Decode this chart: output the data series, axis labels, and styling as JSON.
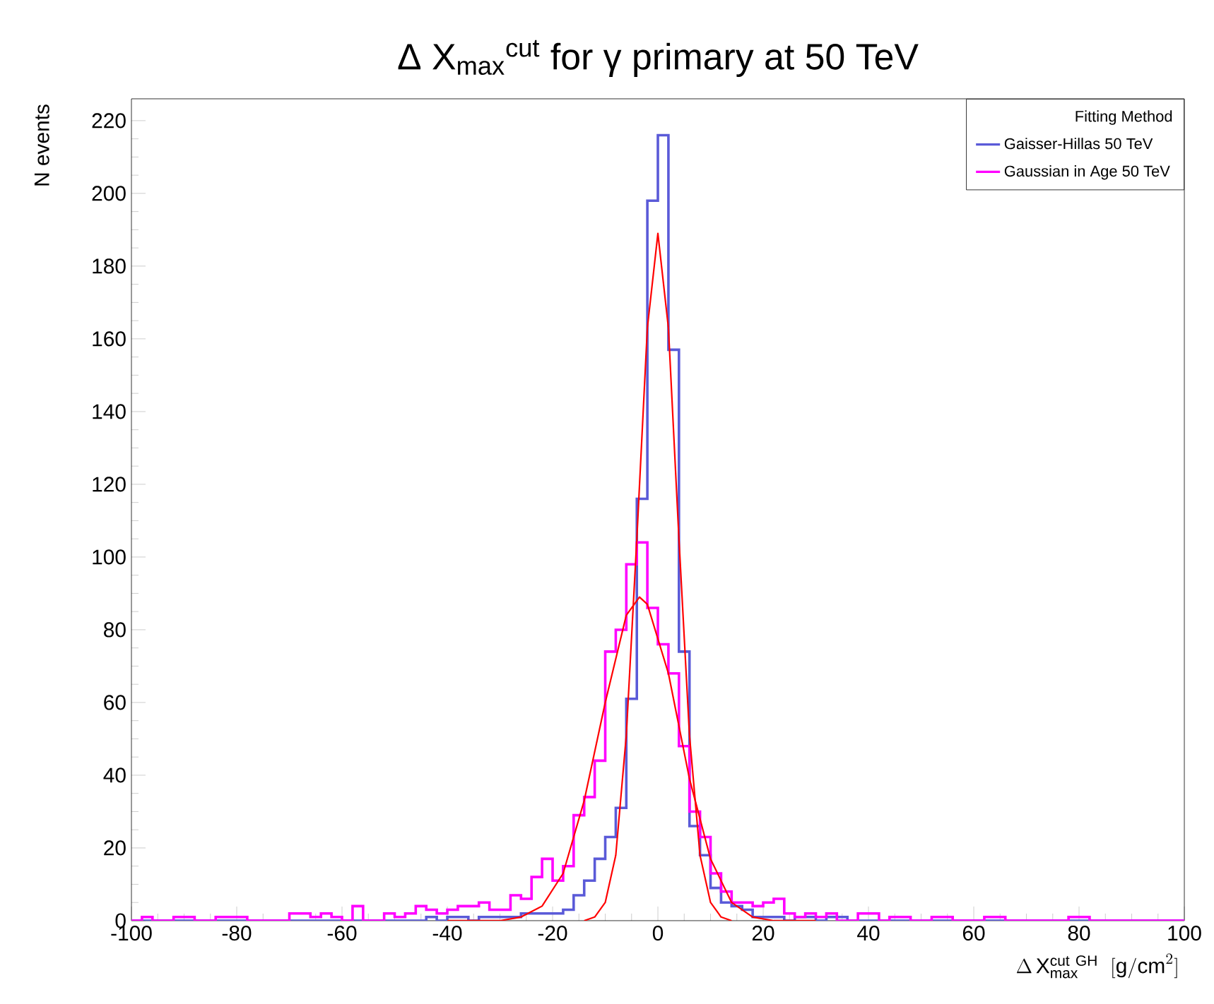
{
  "chart_data": {
    "type": "histogram",
    "title": "Δ X$_{max}$$^{cut}$ for  γ  primary at 50 TeV",
    "xlabel": "\\Delta\\,\\mathrm{X}_{\\mathrm{max}}^{\\mathrm{cut\\ GH}}\\ \\ [\\mathrm{g/cm}^{2}]",
    "ylabel": "N events",
    "legend_title": "Fitting Method",
    "bins": [
      -100,
      -98,
      -96,
      -94,
      -92,
      -90,
      -88,
      -86,
      -84,
      -82,
      -80,
      -78,
      -76,
      -74,
      -72,
      -70,
      -68,
      -66,
      -64,
      -62,
      -60,
      -58,
      -56,
      -54,
      -52,
      -50,
      -48,
      -46,
      -44,
      -42,
      -40,
      -38,
      -36,
      -34,
      -32,
      -30,
      -28,
      -26,
      -24,
      -22,
      -20,
      -18,
      -16,
      -14,
      -12,
      -10,
      -8,
      -6,
      -4,
      -2,
      0,
      2,
      4,
      6,
      8,
      10,
      12,
      14,
      16,
      18,
      20,
      22,
      24,
      26,
      28,
      30,
      32,
      34,
      36,
      38,
      40,
      42,
      44,
      46,
      48,
      50,
      52,
      54,
      56,
      58,
      60,
      62,
      64,
      66,
      68,
      70,
      72,
      74,
      76,
      78,
      80,
      82,
      84,
      86,
      88,
      90,
      92,
      94,
      96,
      98,
      100
    ],
    "series": [
      {
        "name": "Gaisser-Hillas 50 TeV",
        "color": "#5a5ad8",
        "values": [
          0,
          0,
          0,
          0,
          0,
          0,
          0,
          0,
          0,
          0,
          0,
          0,
          0,
          0,
          0,
          0,
          0,
          0,
          0,
          0,
          0,
          0,
          0,
          0,
          0,
          0,
          0,
          0,
          1,
          0,
          1,
          1,
          0,
          1,
          1,
          1,
          1,
          2,
          2,
          2,
          2,
          3,
          7,
          11,
          17,
          23,
          31,
          61,
          116,
          198,
          216,
          157,
          74,
          26,
          18,
          9,
          5,
          4,
          3,
          1,
          1,
          1,
          0,
          1,
          1,
          0,
          1,
          1,
          0,
          0,
          0,
          0,
          0,
          0,
          0,
          0,
          0,
          0,
          0,
          0,
          0,
          0,
          0,
          0,
          0,
          0,
          0,
          0,
          0,
          0,
          0,
          0,
          0,
          0,
          0,
          0,
          0,
          0,
          0,
          0
        ]
      },
      {
        "name": "Gaussian in Age 50 TeV",
        "color": "#ff00ff",
        "values": [
          0,
          1,
          0,
          0,
          1,
          1,
          0,
          0,
          1,
          1,
          1,
          0,
          0,
          0,
          0,
          2,
          2,
          1,
          2,
          1,
          0,
          4,
          0,
          0,
          2,
          1,
          2,
          4,
          3,
          2,
          3,
          4,
          4,
          5,
          3,
          3,
          7,
          6,
          12,
          17,
          11,
          15,
          29,
          34,
          44,
          74,
          80,
          98,
          104,
          86,
          76,
          68,
          48,
          30,
          23,
          13,
          8,
          5,
          5,
          4,
          5,
          6,
          2,
          1,
          2,
          1,
          2,
          0,
          0,
          2,
          2,
          0,
          1,
          1,
          0,
          0,
          1,
          1,
          0,
          0,
          0,
          1,
          1,
          0,
          0,
          0,
          0,
          0,
          0,
          1,
          1,
          0,
          0,
          0,
          0,
          0,
          0,
          0,
          0,
          0
        ]
      },
      {
        "type": "line",
        "color": "#ff0000",
        "x": [
          -14,
          -12,
          -10,
          -8,
          -6,
          -4,
          -2,
          0,
          2,
          4,
          6,
          8,
          10,
          12,
          14
        ],
        "values": [
          0,
          1,
          5,
          18,
          51,
          105,
          163,
          189,
          163,
          105,
          51,
          18,
          5,
          1,
          0
        ]
      },
      {
        "type": "line",
        "color": "#ff0000",
        "x": [
          -40,
          -30,
          -26,
          -22,
          -18,
          -14,
          -10,
          -6,
          -3.5,
          -2,
          2,
          6,
          10,
          14,
          18,
          22,
          30
        ],
        "values": [
          0,
          0,
          1,
          4,
          13,
          33,
          60,
          84,
          89,
          87,
          68,
          39,
          17,
          5,
          1,
          0,
          0
        ]
      }
    ],
    "xlim": [
      -100,
      100
    ],
    "ylim": [
      0,
      226
    ],
    "xticks": [
      -100,
      -80,
      -60,
      -40,
      -20,
      0,
      20,
      40,
      60,
      80,
      100
    ],
    "yticks": [
      0,
      20,
      40,
      60,
      80,
      100,
      120,
      140,
      160,
      180,
      200,
      220
    ],
    "legend": "top right",
    "grid": false
  }
}
